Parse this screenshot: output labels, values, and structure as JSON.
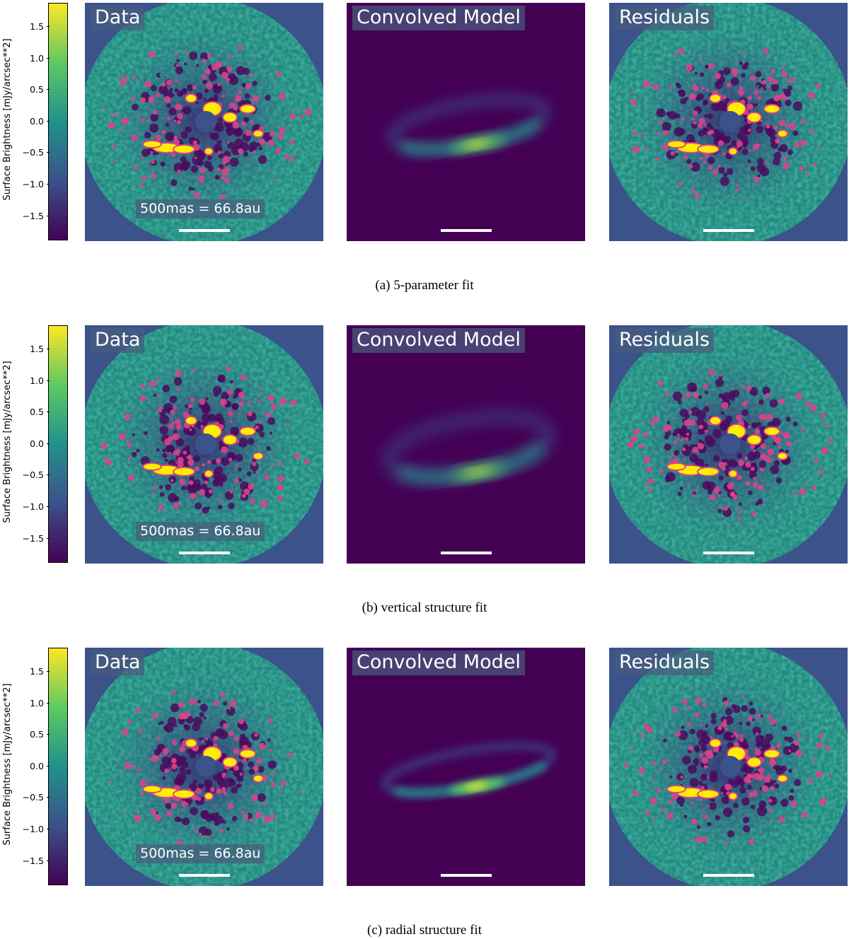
{
  "figure": {
    "colorbar": {
      "label": "Surface Brightness [mJy/arcsec**2]",
      "ticks": [
        "1.5",
        "1.0",
        "0.5",
        "0.0",
        "−0.5",
        "−1.0",
        "−1.5"
      ],
      "colormap": "viridis",
      "colors": [
        "#440154",
        "#3b528b",
        "#21918c",
        "#5ec962",
        "#fde725"
      ]
    },
    "highlight_colors": {
      "positive_clip": "#ffee00",
      "contour": "#e0408a",
      "negative": "#4a0a5e"
    },
    "panel_titles": [
      "Data",
      "Convolved Model",
      "Residuals"
    ],
    "scale_label": "500mas = 66.8au",
    "rows": [
      {
        "caption": "(a) 5-parameter fit"
      },
      {
        "caption": "(b) vertical structure fit"
      },
      {
        "caption": "(c) radial structure fit"
      }
    ]
  }
}
